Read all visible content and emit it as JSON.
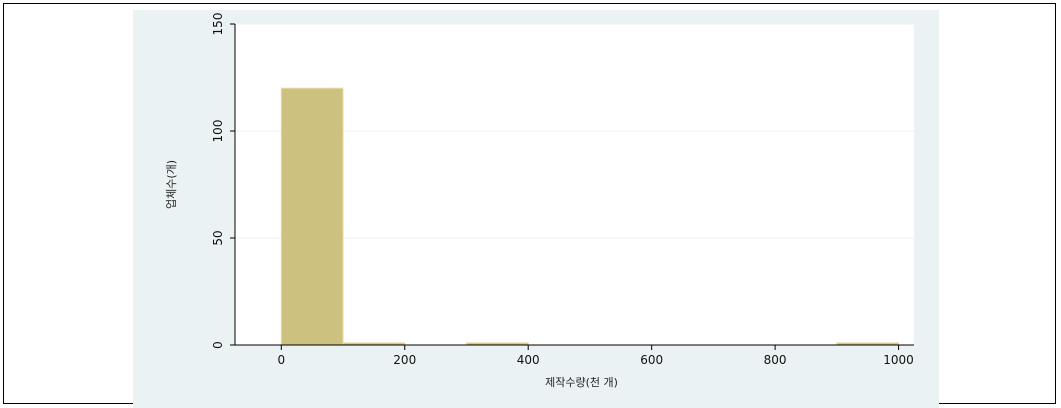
{
  "chart_data": {
    "type": "bar",
    "xlabel": "제작수량(천 개)",
    "ylabel": "업체수(개)",
    "xlim": [
      -75,
      1025
    ],
    "ylim": [
      0,
      150
    ],
    "x_ticks": [
      0,
      200,
      400,
      600,
      800,
      1000
    ],
    "y_ticks": [
      0,
      50,
      100,
      150
    ],
    "grid": "horizontal",
    "bin_width": 100,
    "bins": [
      {
        "x0": 0,
        "x1": 100,
        "value": 120
      },
      {
        "x0": 100,
        "x1": 200,
        "value": 1
      },
      {
        "x0": 300,
        "x1": 400,
        "value": 1
      },
      {
        "x0": 900,
        "x1": 1000,
        "value": 1
      }
    ],
    "colors": {
      "bar": "#cdc17f",
      "bar_edge": "#e8dba8",
      "panel": "#eaf2f3",
      "plot": "#ffffff",
      "grid": "#eaf2f3"
    }
  }
}
